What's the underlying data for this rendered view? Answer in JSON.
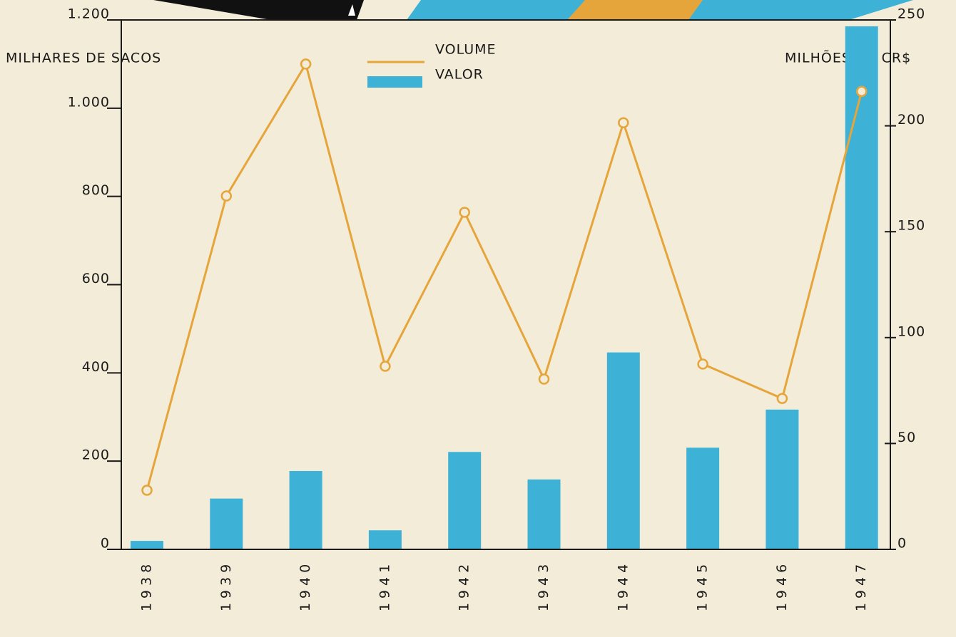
{
  "chart_data": {
    "type": "bar",
    "ylabel": "MILHARES DE SACOS",
    "y2label": "MILHÕES DE CR$",
    "categories": [
      "1938",
      "1939",
      "1940",
      "1941",
      "1942",
      "1943",
      "1944",
      "1945",
      "1946",
      "1947"
    ],
    "series": [
      {
        "name": "VOLUME",
        "type": "line",
        "color": "#e6a53a",
        "values": [
          134,
          801,
          1100,
          415,
          764,
          386,
          967,
          420,
          342,
          1038
        ]
      },
      {
        "name": "VALOR",
        "type": "bar",
        "axis": "y2",
        "color": "#3db2d6",
        "values": [
          4,
          24,
          37,
          9,
          46,
          33,
          93,
          48,
          66,
          247
        ]
      }
    ],
    "ylim": [
      0,
      1200
    ],
    "yticks": [
      0,
      200,
      400,
      600,
      800,
      {
        "value": 1000,
        "label": "1.000"
      },
      {
        "value": 1200,
        "label": "1.200"
      }
    ],
    "y2lim": [
      0,
      250
    ],
    "y2ticks": [
      0,
      50,
      100,
      150,
      200,
      250
    ]
  }
}
